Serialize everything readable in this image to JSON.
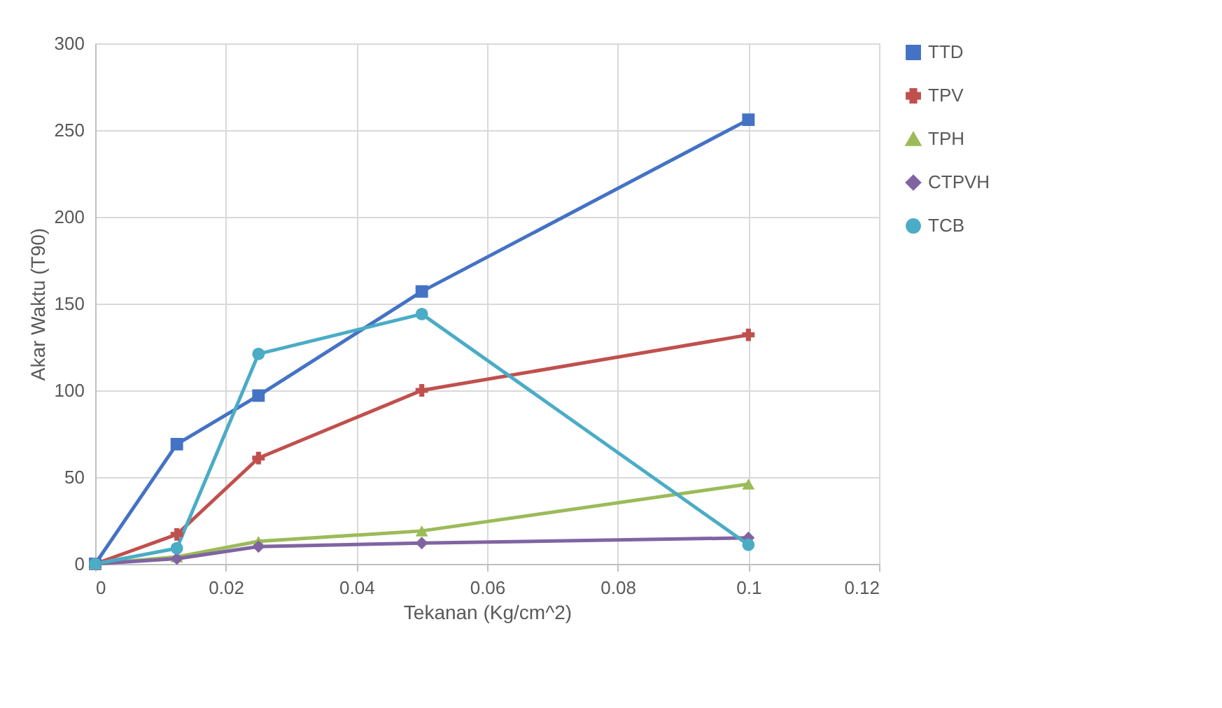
{
  "chart_data": {
    "type": "line",
    "xlabel": "Tekanan (Kg/cm^2)",
    "ylabel": "Akar Waktu (T90)",
    "x": [
      0,
      0.0125,
      0.025,
      0.05,
      0.1
    ],
    "series": [
      {
        "name": "TTD",
        "color": "#4472c4",
        "marker": "square",
        "values": [
          0,
          69,
          97,
          157,
          256
        ]
      },
      {
        "name": "TPV",
        "color": "#c0504d",
        "marker": "cross",
        "values": [
          0,
          17,
          61,
          100,
          132
        ]
      },
      {
        "name": "TPH",
        "color": "#9bbb59",
        "marker": "triangle",
        "values": [
          0,
          4,
          13,
          19,
          46
        ]
      },
      {
        "name": "CTPVH",
        "color": "#8064a2",
        "marker": "diamond",
        "values": [
          0,
          3,
          10,
          12,
          15
        ]
      },
      {
        "name": "TCB",
        "color": "#4bacc6",
        "marker": "circle",
        "values": [
          0,
          9,
          121,
          144,
          11
        ]
      }
    ],
    "xlim": [
      0,
      0.12
    ],
    "xticks": [
      0,
      0.02,
      0.04,
      0.06,
      0.08,
      0.1,
      0.12
    ],
    "ylim": [
      0,
      300
    ],
    "yticks": [
      0,
      50,
      100,
      150,
      200,
      250,
      300
    ],
    "grid": true,
    "legend": "right",
    "line_style": "solid"
  }
}
